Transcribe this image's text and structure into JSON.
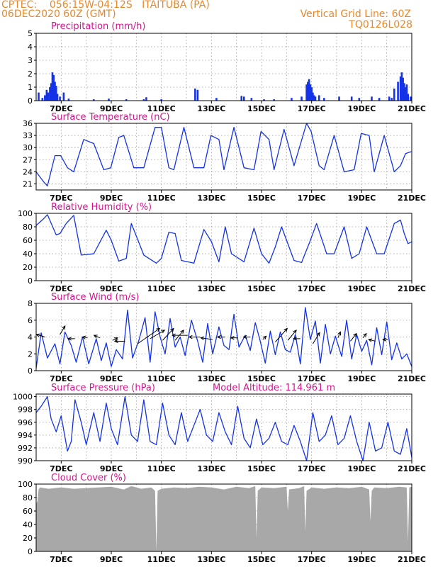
{
  "header": {
    "line1": "CPTEC:    056:15W-04:12S   ITAITUBA (PA)",
    "line2": "06DEC2020 60Z (GMT)",
    "grid_note": "Vertical Grid Line: 60Z",
    "code": "TQ0126L028"
  },
  "colors": {
    "header": "#e8882a",
    "panel_title": "#d4148c",
    "series": "#1432e6",
    "cloud": "#a8a8a8",
    "grid": "#9a9a9a",
    "axis_text": "#000000"
  },
  "chart_data": [
    {
      "type": "bar",
      "title": "Precipitation (mm/h)",
      "ylim": [
        0,
        5
      ],
      "yticks": [
        0,
        1,
        2,
        3,
        4,
        5
      ],
      "xticks": [
        "7DEC",
        "9DEC",
        "11DEC",
        "13DEC",
        "15DEC",
        "17DEC",
        "19DEC",
        "21DEC"
      ],
      "x_unit": "day of December 2020 (UTC)",
      "xlim": [
        6.0,
        21.0
      ],
      "grid": true,
      "x": [
        6.1,
        6.25,
        6.35,
        6.42,
        6.48,
        6.55,
        6.6,
        6.65,
        6.7,
        6.75,
        6.8,
        6.85,
        6.95,
        7.1,
        7.3,
        8.3,
        8.9,
        9.6,
        10.3,
        10.4,
        11.0,
        12.35,
        12.45,
        13.2,
        14.2,
        14.3,
        14.6,
        15.1,
        15.5,
        16.2,
        16.6,
        16.8,
        16.85,
        16.9,
        16.95,
        17.0,
        17.05,
        17.1,
        17.15,
        17.3,
        17.5,
        18.1,
        18.6,
        18.9,
        19.4,
        19.7,
        20.1,
        20.2,
        20.3,
        20.45,
        20.55,
        20.6,
        20.65,
        20.7,
        20.75,
        20.8,
        20.85,
        20.95
      ],
      "values": [
        0.6,
        0.2,
        0.4,
        0.8,
        0.6,
        1.0,
        1.3,
        2.1,
        1.9,
        1.4,
        1.1,
        0.5,
        0.3,
        0.6,
        0.15,
        0.1,
        0.15,
        0.1,
        0.1,
        0.25,
        0.1,
        0.9,
        0.8,
        0.2,
        0.35,
        0.3,
        0.2,
        0.1,
        0.1,
        0.2,
        0.3,
        1.2,
        1.4,
        1.6,
        1.2,
        1.0,
        0.6,
        0.4,
        0.3,
        0.4,
        0.2,
        0.3,
        0.3,
        0.2,
        0.3,
        0.2,
        0.3,
        0.2,
        0.9,
        1.4,
        1.8,
        2.1,
        1.7,
        1.3,
        1.0,
        1.2,
        0.5,
        0.3
      ]
    },
    {
      "type": "line",
      "title": "Surface Temperature (nC)",
      "ylim": [
        19.5,
        36
      ],
      "yticks": [
        21,
        24,
        27,
        30,
        33,
        36
      ],
      "xticks": [
        "7DEC",
        "9DEC",
        "11DEC",
        "13DEC",
        "15DEC",
        "17DEC",
        "19DEC",
        "21DEC"
      ],
      "xlim": [
        6.0,
        21.0
      ],
      "grid": true,
      "x": [
        6.0,
        6.3,
        6.45,
        6.75,
        6.98,
        7.25,
        7.5,
        7.9,
        8.3,
        8.7,
        8.98,
        9.3,
        9.5,
        9.9,
        10.3,
        10.75,
        11.0,
        11.3,
        11.5,
        11.9,
        12.3,
        12.7,
        12.98,
        13.3,
        13.5,
        13.9,
        14.3,
        14.7,
        14.98,
        15.3,
        15.5,
        15.9,
        16.3,
        16.8,
        16.98,
        17.3,
        17.5,
        17.9,
        18.3,
        18.7,
        18.98,
        19.3,
        19.5,
        19.9,
        20.3,
        20.55,
        20.75,
        20.98
      ],
      "values": [
        24.0,
        21.5,
        20.5,
        28.0,
        28.0,
        25.0,
        24.0,
        32.0,
        31.0,
        24.5,
        25.0,
        32.5,
        33.0,
        25.0,
        25.0,
        35.0,
        35.0,
        25.0,
        24.5,
        35.0,
        25.0,
        25.0,
        33.0,
        32.0,
        24.5,
        35.0,
        25.0,
        24.5,
        34.0,
        32.0,
        24.5,
        34.5,
        25.5,
        36.0,
        34.0,
        25.5,
        24.5,
        33.0,
        24.0,
        24.5,
        33.5,
        33.0,
        24.0,
        33.0,
        24.0,
        25.5,
        28.5,
        29.0
      ]
    },
    {
      "type": "line",
      "title": "Relative Humidity (%)",
      "ylim": [
        0,
        100
      ],
      "yticks": [
        0,
        20,
        40,
        60,
        80,
        100
      ],
      "xticks": [
        "7DEC",
        "9DEC",
        "11DEC",
        "13DEC",
        "15DEC",
        "17DEC",
        "19DEC",
        "21DEC"
      ],
      "xlim": [
        6.0,
        21.0
      ],
      "grid": true,
      "x": [
        6.0,
        6.3,
        6.45,
        6.8,
        6.95,
        7.2,
        7.5,
        7.8,
        8.3,
        8.8,
        9.0,
        9.3,
        9.6,
        9.8,
        10.3,
        10.8,
        11.0,
        11.3,
        11.55,
        11.8,
        12.3,
        12.7,
        13.0,
        13.3,
        13.55,
        13.8,
        14.3,
        14.7,
        15.0,
        15.3,
        15.55,
        15.8,
        16.3,
        16.6,
        16.9,
        17.2,
        17.6,
        17.9,
        18.3,
        18.6,
        18.9,
        19.2,
        19.6,
        19.9,
        20.3,
        20.55,
        20.7,
        20.85,
        21.0
      ],
      "values": [
        82,
        92,
        98,
        68,
        70,
        85,
        97,
        38,
        40,
        75,
        60,
        29,
        33,
        85,
        38,
        26,
        33,
        72,
        70,
        30,
        26,
        76,
        58,
        28,
        80,
        40,
        28,
        78,
        40,
        26,
        50,
        80,
        30,
        27,
        55,
        85,
        40,
        40,
        80,
        33,
        40,
        80,
        40,
        40,
        85,
        90,
        70,
        55,
        58
      ]
    },
    {
      "type": "line",
      "title": "Surface Wind (m/s)",
      "ylim": [
        0,
        8
      ],
      "yticks": [
        0,
        2,
        4,
        6,
        8
      ],
      "xticks": [
        "7DEC",
        "9DEC",
        "11DEC",
        "13DEC",
        "15DEC",
        "17DEC",
        "19DEC",
        "21DEC"
      ],
      "xlim": [
        6.0,
        21.0
      ],
      "grid": true,
      "x": [
        6.0,
        6.2,
        6.45,
        6.75,
        6.95,
        7.15,
        7.4,
        7.6,
        7.85,
        8.1,
        8.4,
        8.6,
        8.8,
        9.0,
        9.2,
        9.45,
        9.65,
        9.85,
        10.1,
        10.35,
        10.55,
        10.75,
        10.95,
        11.15,
        11.35,
        11.55,
        11.75,
        11.95,
        12.2,
        12.45,
        12.65,
        12.85,
        13.05,
        13.3,
        13.5,
        13.7,
        13.9,
        14.1,
        14.35,
        14.55,
        14.75,
        14.95,
        15.15,
        15.35,
        15.55,
        15.75,
        15.95,
        16.15,
        16.35,
        16.55,
        16.75,
        16.95,
        17.15,
        17.35,
        17.55,
        17.75,
        17.95,
        18.2,
        18.4,
        18.6,
        18.8,
        19.0,
        19.2,
        19.4,
        19.6,
        19.8,
        20.0,
        20.2,
        20.4,
        20.6,
        20.8,
        21.0
      ],
      "values": [
        0.3,
        4.5,
        1.5,
        3.2,
        0.8,
        4.6,
        3.0,
        1.0,
        4.0,
        0.8,
        3.8,
        1.2,
        3.3,
        0.5,
        2.5,
        1.4,
        7.2,
        1.5,
        3.6,
        6.3,
        1.0,
        7.0,
        4.0,
        2.0,
        6.2,
        2.8,
        4.0,
        1.8,
        6.0,
        3.5,
        1.0,
        5.6,
        2.0,
        5.2,
        3.0,
        2.5,
        6.7,
        2.8,
        4.2,
        2.4,
        5.7,
        3.5,
        0.9,
        4.7,
        1.9,
        4.6,
        2.5,
        2.2,
        4.3,
        0.8,
        7.5,
        3.7,
        5.9,
        0.9,
        5.5,
        2.0,
        4.1,
        1.7,
        6.0,
        1.4,
        4.3,
        2.3,
        3.6,
        0.7,
        5.1,
        1.9,
        5.8,
        1.3,
        3.3,
        1.4,
        2.0,
        0.5
      ],
      "vectors": [
        {
          "x": 6.35,
          "y": 4.0,
          "u": -1,
          "v": 0.3
        },
        {
          "x": 6.95,
          "y": 4.3,
          "u": 0.6,
          "v": 1.0
        },
        {
          "x": 7.55,
          "y": 3.8,
          "u": -0.8,
          "v": 0.0
        },
        {
          "x": 8.05,
          "y": 3.9,
          "u": -0.6,
          "v": 0.1
        },
        {
          "x": 8.55,
          "y": 3.9,
          "u": -0.7,
          "v": 0.3
        },
        {
          "x": 9.05,
          "y": 3.6,
          "u": 0.6,
          "v": 0.3
        },
        {
          "x": 9.55,
          "y": 3.5,
          "u": -1.2,
          "v": 0.0
        },
        {
          "x": 10.05,
          "y": 3.2,
          "u": 2.6,
          "v": 1.8
        },
        {
          "x": 10.55,
          "y": 3.8,
          "u": 1.7,
          "v": 1.0
        },
        {
          "x": 11.05,
          "y": 3.6,
          "u": 1.3,
          "v": 1.4
        },
        {
          "x": 11.55,
          "y": 3.6,
          "u": 1.0,
          "v": 1.2
        },
        {
          "x": 12.05,
          "y": 4.2,
          "u": -1.8,
          "v": 0.0
        },
        {
          "x": 12.55,
          "y": 4.0,
          "u": -1.3,
          "v": 0.0
        },
        {
          "x": 13.05,
          "y": 3.7,
          "u": -1.4,
          "v": 0.2
        },
        {
          "x": 13.55,
          "y": 4.0,
          "u": -0.9,
          "v": 0.0
        },
        {
          "x": 14.05,
          "y": 3.9,
          "u": -0.8,
          "v": 0.0
        },
        {
          "x": 14.55,
          "y": 4.0,
          "u": -0.8,
          "v": 0.0
        },
        {
          "x": 15.05,
          "y": 3.7,
          "u": 0.4,
          "v": 0.4
        },
        {
          "x": 15.55,
          "y": 3.4,
          "u": 1.4,
          "v": 1.6
        },
        {
          "x": 16.05,
          "y": 3.6,
          "u": 1.0,
          "v": 1.2
        },
        {
          "x": 16.55,
          "y": 3.8,
          "u": -0.8,
          "v": 0.0
        },
        {
          "x": 17.05,
          "y": 3.2,
          "u": 0.8,
          "v": 1.3
        },
        {
          "x": 17.55,
          "y": 3.4,
          "u": 0.0,
          "v": 0.0
        },
        {
          "x": 18.05,
          "y": 3.9,
          "u": 0.3,
          "v": 0.7
        },
        {
          "x": 18.55,
          "y": 3.5,
          "u": 0.7,
          "v": 0.9
        },
        {
          "x": 19.05,
          "y": 3.9,
          "u": 0.4,
          "v": 0.5
        },
        {
          "x": 19.55,
          "y": 3.5,
          "u": -0.8,
          "v": 0.2
        },
        {
          "x": 20.05,
          "y": 3.7,
          "u": -0.6,
          "v": 0.0
        }
      ]
    },
    {
      "type": "line",
      "title": "Surface Pressure (hPa)",
      "annotation": "Model Altitude:   114.961  m",
      "ylim": [
        990,
        1000.4
      ],
      "yticks": [
        990,
        992,
        994,
        996,
        998,
        1000
      ],
      "xticks": [
        "7DEC",
        "9DEC",
        "11DEC",
        "13DEC",
        "15DEC",
        "17DEC",
        "19DEC",
        "21DEC"
      ],
      "xlim": [
        6.0,
        21.0
      ],
      "grid": true,
      "x": [
        6.0,
        6.2,
        6.45,
        6.6,
        6.8,
        7.0,
        7.25,
        7.4,
        7.55,
        7.8,
        8.0,
        8.3,
        8.55,
        8.8,
        9.0,
        9.25,
        9.55,
        9.8,
        10.05,
        10.3,
        10.55,
        10.8,
        11.05,
        11.3,
        11.55,
        11.8,
        12.05,
        12.3,
        12.55,
        12.8,
        13.05,
        13.3,
        13.55,
        13.8,
        14.05,
        14.3,
        14.55,
        14.8,
        15.05,
        15.3,
        15.55,
        15.8,
        16.05,
        16.3,
        16.55,
        16.8,
        17.05,
        17.3,
        17.55,
        17.8,
        18.05,
        18.3,
        18.55,
        18.8,
        19.05,
        19.3,
        19.55,
        19.8,
        20.05,
        20.3,
        20.55,
        20.8,
        21.0
      ],
      "values": [
        997.5,
        998.5,
        1000.0,
        996.5,
        994.5,
        997.0,
        991.5,
        993.0,
        999.5,
        996.0,
        992.5,
        997.5,
        993.0,
        999.0,
        995.0,
        992.5,
        1000.0,
        994.0,
        993.0,
        999.5,
        993.0,
        992.5,
        999.0,
        994.0,
        992.5,
        997.5,
        993.0,
        995.5,
        998.0,
        994.0,
        993.0,
        997.5,
        994.5,
        992.5,
        998.5,
        993.5,
        992.0,
        996.5,
        992.5,
        993.5,
        996.0,
        993.0,
        992.5,
        995.5,
        993.0,
        990.0,
        997.5,
        993.0,
        994.0,
        997.0,
        992.5,
        993.5,
        997.0,
        993.0,
        990.0,
        996.0,
        991.5,
        992.0,
        996.0,
        991.5,
        991.0,
        995.0,
        990.5
      ]
    },
    {
      "type": "area",
      "title": "Cloud Cover (%)",
      "ylim": [
        0,
        100
      ],
      "yticks": [
        0,
        20,
        40,
        60,
        80,
        100
      ],
      "xticks": [
        "7DEC",
        "9DEC",
        "11DEC",
        "13DEC",
        "15DEC",
        "17DEC",
        "19DEC",
        "21DEC"
      ],
      "xlim": [
        6.0,
        21.0
      ],
      "grid": true,
      "x": [
        6.0,
        6.05,
        6.1,
        6.15,
        6.5,
        7.0,
        7.5,
        8.0,
        8.5,
        9.0,
        9.5,
        9.8,
        10.2,
        10.6,
        10.75,
        10.8,
        10.85,
        11.0,
        11.5,
        12.0,
        12.5,
        13.0,
        13.5,
        14.0,
        14.5,
        14.75,
        14.8,
        14.85,
        15.0,
        15.5,
        16.0,
        16.05,
        16.1,
        16.5,
        16.7,
        16.75,
        16.8,
        17.0,
        17.5,
        18.0,
        18.5,
        19.0,
        19.3,
        19.35,
        19.4,
        19.5,
        20.0,
        20.5,
        20.8,
        20.85,
        20.9,
        21.0
      ],
      "values": [
        70,
        75,
        92,
        95,
        93,
        95,
        93,
        94,
        95,
        96,
        92,
        97,
        93,
        95,
        90,
        0,
        90,
        93,
        95,
        94,
        96,
        95,
        92,
        96,
        94,
        97,
        20,
        90,
        95,
        94,
        96,
        60,
        92,
        94,
        97,
        30,
        90,
        95,
        93,
        95,
        94,
        96,
        92,
        45,
        90,
        95,
        94,
        96,
        95,
        15,
        95,
        96
      ]
    }
  ]
}
